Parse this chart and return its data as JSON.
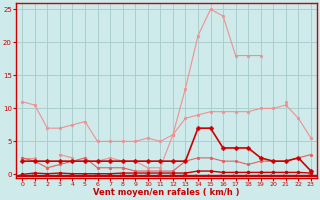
{
  "x": [
    0,
    1,
    2,
    3,
    4,
    5,
    6,
    7,
    8,
    9,
    10,
    11,
    12,
    13,
    14,
    15,
    16,
    17,
    18,
    19,
    20,
    21,
    22,
    23
  ],
  "line_salmon_top": [
    11,
    10.5,
    7,
    7,
    7.5,
    8,
    5,
    5,
    5,
    5,
    5.5,
    5,
    6,
    8.5,
    9,
    9.5,
    9.5,
    9.5,
    9.5,
    10,
    10,
    10.5,
    8.5,
    5.5
  ],
  "line_salmon_peak": [
    2.5,
    2.5,
    null,
    3,
    2.5,
    null,
    2,
    2.5,
    2,
    2,
    1,
    1,
    6,
    13,
    21,
    25,
    24,
    18,
    18,
    18,
    null,
    11,
    null,
    null
  ],
  "line_pink_low": [
    2.5,
    2,
    1,
    1.5,
    2,
    2.5,
    1,
    1,
    1,
    0.5,
    0.5,
    0.5,
    0.5,
    2,
    2.5,
    2.5,
    2,
    2,
    1.5,
    2,
    2,
    2,
    2.5,
    3
  ],
  "line_dark_mid": [
    2,
    2,
    2,
    2,
    2,
    2,
    2,
    2,
    2,
    2,
    2,
    2,
    2,
    2,
    7,
    7,
    4,
    4,
    4,
    2.5,
    2,
    2,
    2.5,
    0.5
  ],
  "line_near_zero": [
    0,
    0.2,
    0.1,
    0.2,
    0.1,
    0.1,
    0.1,
    0.1,
    0.2,
    0.2,
    0.2,
    0.2,
    0.2,
    0.2,
    0.5,
    0.5,
    0.3,
    0.3,
    0.3,
    0.3,
    0.3,
    0.3,
    0.3,
    0.2
  ],
  "bg_color": "#ceeaea",
  "grid_color": "#aacece",
  "axis_color": "#cc0000",
  "line_color_light": "#f09090",
  "line_color_mid": "#e06060",
  "line_color_dark": "#cc0000",
  "xlabel": "Vent moyen/en rafales ( km/h )",
  "ylim": [
    -0.5,
    26
  ],
  "xlim": [
    -0.5,
    23.5
  ],
  "yticks": [
    0,
    5,
    10,
    15,
    20,
    25
  ],
  "xticks": [
    0,
    1,
    2,
    3,
    4,
    5,
    6,
    7,
    8,
    9,
    10,
    11,
    12,
    13,
    14,
    15,
    16,
    17,
    18,
    19,
    20,
    21,
    22,
    23
  ]
}
